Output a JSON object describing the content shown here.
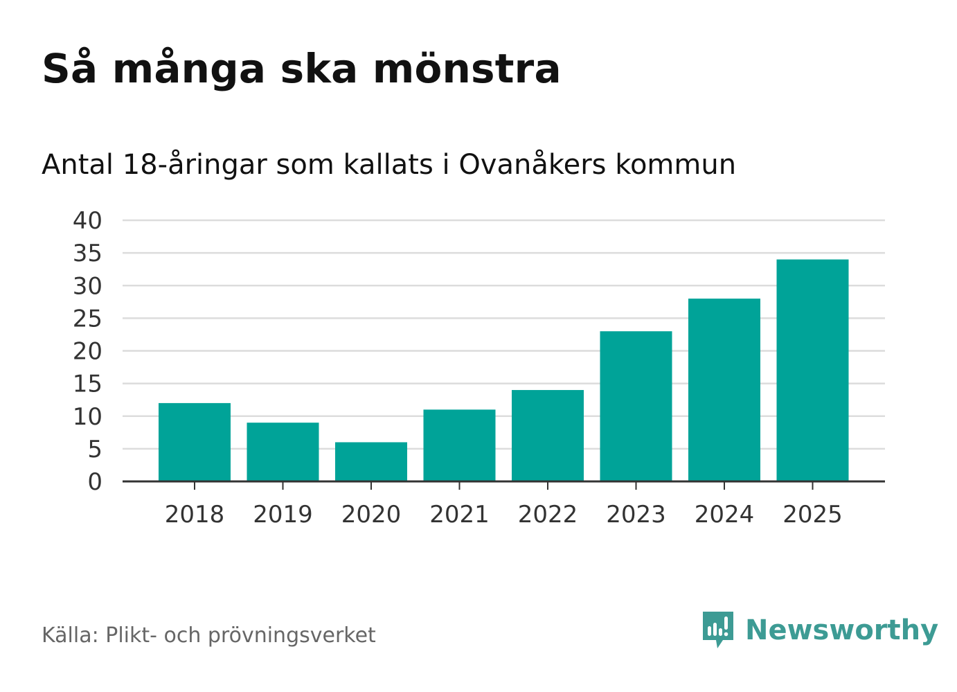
{
  "header": {
    "title": "Så många ska mönstra",
    "subtitle": "Antal 18-åringar som kallats i Ovanåkers kommun"
  },
  "footer": {
    "source": "Källa: Plikt- och prövningsverket",
    "brand": "Newsworthy"
  },
  "colors": {
    "bar": "#00a398",
    "grid": "#dcdcdc",
    "axis": "#333333",
    "tick_text": "#333333",
    "brand": "#3d9b94"
  },
  "chart_data": {
    "type": "bar",
    "title": "Så många ska mönstra",
    "subtitle": "Antal 18-åringar som kallats i Ovanåkers kommun",
    "xlabel": "",
    "ylabel": "",
    "categories": [
      "2018",
      "2019",
      "2020",
      "2021",
      "2022",
      "2023",
      "2024",
      "2025"
    ],
    "values": [
      12,
      9,
      6,
      11,
      14,
      23,
      28,
      34
    ],
    "ylim": [
      0,
      40
    ],
    "yticks": [
      0,
      5,
      10,
      15,
      20,
      25,
      30,
      35,
      40
    ],
    "grid": true,
    "legend": "none"
  }
}
